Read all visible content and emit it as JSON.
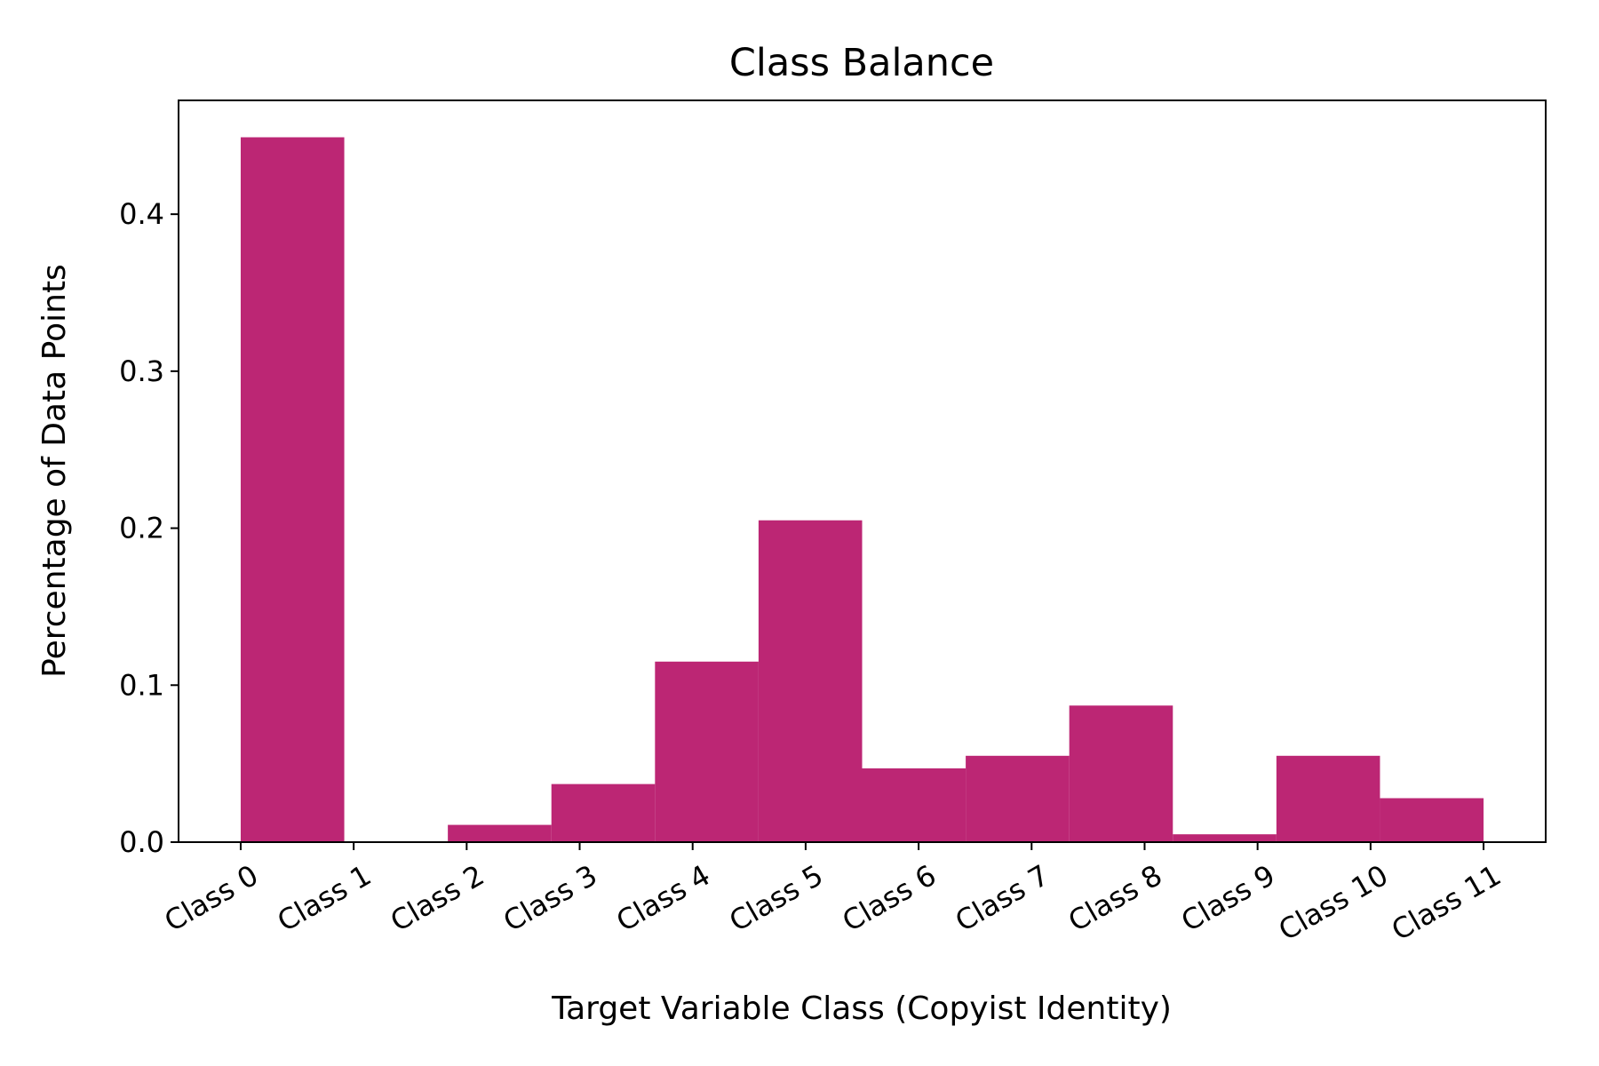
{
  "chart_data": {
    "type": "histogram",
    "title": "Class Balance",
    "xlabel": "Target Variable Class (Copyist Identity)",
    "ylabel": "Percentage of Data Points",
    "categories": [
      "Class 0",
      "Class 1",
      "Class 2",
      "Class 3",
      "Class 4",
      "Class 5",
      "Class 6",
      "Class 7",
      "Class 8",
      "Class 9",
      "Class 10",
      "Class 11"
    ],
    "bin_edges": [
      0.0,
      0.9167,
      1.8333,
      2.75,
      3.6667,
      4.5833,
      5.5,
      6.4167,
      7.3333,
      8.25,
      9.1667,
      10.0833,
      11.0
    ],
    "values": [
      0.449,
      0.0,
      0.011,
      0.037,
      0.115,
      0.205,
      0.047,
      0.055,
      0.087,
      0.005,
      0.055,
      0.028
    ],
    "xlim": [
      -0.55,
      11.55
    ],
    "ylim": [
      0,
      0.4725
    ],
    "yticks": [
      0.0,
      0.1,
      0.2,
      0.3,
      0.4
    ],
    "ytick_labels": [
      "0.0",
      "0.1",
      "0.2",
      "0.3",
      "0.4"
    ],
    "grid": false,
    "bar_color": "#bc2674"
  }
}
